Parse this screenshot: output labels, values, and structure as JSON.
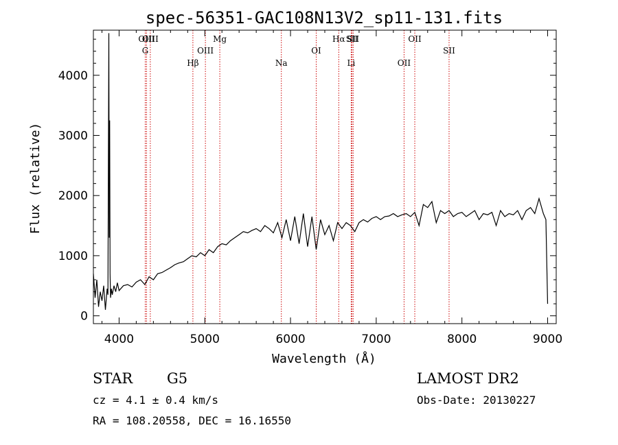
{
  "chart_data": {
    "type": "line",
    "title": "spec-56351-GAC108N13V2_sp11-131.fits",
    "xlabel": "Wavelength (Å)",
    "ylabel": "Flux (relative)",
    "xlim": [
      3700,
      9100
    ],
    "ylim": [
      -130,
      4750
    ],
    "xticks": [
      4000,
      5000,
      6000,
      7000,
      8000,
      9000
    ],
    "yticks": [
      0,
      1000,
      2000,
      3000,
      4000
    ],
    "grid": false,
    "series": [
      {
        "x": [
          3700,
          3720,
          3740,
          3760,
          3780,
          3800,
          3820,
          3840,
          3860,
          3870,
          3880,
          3885,
          3890,
          3895,
          3900,
          3910,
          3920,
          3940,
          3960,
          3980,
          4000,
          4050,
          4100,
          4150,
          4200,
          4250,
          4300,
          4350,
          4400,
          4450,
          4500,
          4550,
          4600,
          4650,
          4700,
          4750,
          4800,
          4850,
          4900,
          4950,
          5000,
          5050,
          5100,
          5150,
          5200,
          5250,
          5300,
          5350,
          5400,
          5450,
          5500,
          5550,
          5600,
          5650,
          5700,
          5750,
          5800,
          5850,
          5900,
          5950,
          6000,
          6050,
          6100,
          6150,
          6200,
          6250,
          6300,
          6350,
          6400,
          6450,
          6500,
          6550,
          6600,
          6650,
          6700,
          6750,
          6800,
          6850,
          6900,
          6950,
          7000,
          7050,
          7100,
          7150,
          7200,
          7250,
          7300,
          7350,
          7400,
          7450,
          7500,
          7550,
          7600,
          7650,
          7700,
          7750,
          7800,
          7850,
          7900,
          7950,
          8000,
          8050,
          8100,
          8150,
          8200,
          8250,
          8300,
          8350,
          8400,
          8450,
          8500,
          8550,
          8600,
          8650,
          8700,
          8750,
          8800,
          8850,
          8900,
          8950,
          8980,
          9000
        ],
        "y": [
          700,
          300,
          600,
          150,
          400,
          250,
          500,
          100,
          450,
          350,
          4700,
          1300,
          3250,
          700,
          300,
          450,
          350,
          500,
          400,
          550,
          420,
          500,
          520,
          480,
          560,
          600,
          520,
          650,
          600,
          700,
          720,
          760,
          800,
          850,
          880,
          900,
          950,
          1000,
          980,
          1050,
          1000,
          1100,
          1050,
          1150,
          1200,
          1180,
          1250,
          1300,
          1350,
          1400,
          1380,
          1420,
          1450,
          1400,
          1500,
          1450,
          1380,
          1550,
          1300,
          1600,
          1250,
          1650,
          1200,
          1700,
          1150,
          1650,
          1100,
          1600,
          1350,
          1500,
          1250,
          1550,
          1450,
          1550,
          1500,
          1400,
          1550,
          1600,
          1560,
          1620,
          1650,
          1600,
          1650,
          1660,
          1700,
          1650,
          1680,
          1700,
          1650,
          1720,
          1500,
          1850,
          1800,
          1900,
          1550,
          1750,
          1700,
          1750,
          1650,
          1700,
          1720,
          1650,
          1700,
          1750,
          1600,
          1700,
          1680,
          1720,
          1500,
          1750,
          1650,
          1700,
          1680,
          1750,
          1600,
          1750,
          1800,
          1700,
          1950,
          1700,
          1600,
          200
        ]
      }
    ],
    "spectral_lines": [
      {
        "label": "OIII",
        "wavelength": 4320,
        "row": 1
      },
      {
        "label": "G",
        "wavelength": 4305,
        "row": 2
      },
      {
        "label": "OIII",
        "wavelength": 4364,
        "row": 0
      },
      {
        "label": "Hβ",
        "wavelength": 4861,
        "row": 3
      },
      {
        "label": "OIII",
        "wavelength": 5007,
        "row": 2
      },
      {
        "label": "Mg",
        "wavelength": 5175,
        "row": 1
      },
      {
        "label": "Na",
        "wavelength": 5893,
        "row": 3
      },
      {
        "label": "OI",
        "wavelength": 6300,
        "row": 2
      },
      {
        "label": "Hα",
        "wavelength": 6563,
        "row": 1
      },
      {
        "label": "SII",
        "wavelength": 6717,
        "row": 1
      },
      {
        "label": "Li",
        "wavelength": 6708,
        "row": 3
      },
      {
        "label": "SII",
        "wavelength": 6731,
        "row": 0
      },
      {
        "label": "OII",
        "wavelength": 7325,
        "row": 3
      },
      {
        "label": "OII",
        "wavelength": 7450,
        "row": 0
      },
      {
        "label": "SII",
        "wavelength": 7850,
        "row": 2
      }
    ],
    "line_color": "#000000",
    "marker_color": "#cc0000"
  },
  "info": {
    "class": "STAR",
    "subclass": "G5",
    "survey": "LAMOST DR2",
    "cz": "cz = 4.1 ± 0.4 km/s",
    "obs_date": "Obs-Date: 20130227",
    "radec": "RA = 108.20558, DEC =  16.16550"
  }
}
